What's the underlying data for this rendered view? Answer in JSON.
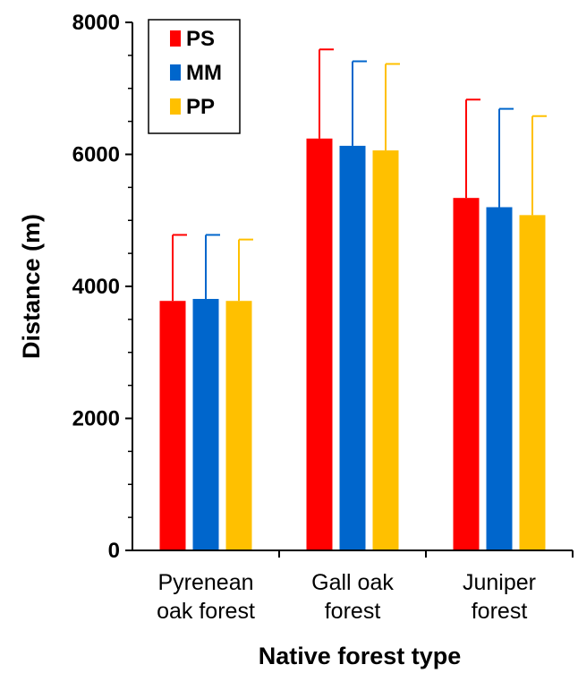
{
  "chart_data": {
    "type": "bar",
    "categories": [
      [
        "Pyrenean",
        "oak forest"
      ],
      [
        "Gall oak",
        "forest"
      ],
      [
        "Juniper",
        "forest"
      ]
    ],
    "series": [
      {
        "name": "PS",
        "color": "#ff0000",
        "values": [
          3780,
          6240,
          5340
        ],
        "errors": [
          1000,
          1350,
          1490
        ]
      },
      {
        "name": "MM",
        "color": "#0066cc",
        "values": [
          3810,
          6130,
          5200
        ],
        "errors": [
          970,
          1280,
          1490
        ]
      },
      {
        "name": "PP",
        "color": "#ffc000",
        "values": [
          3780,
          6060,
          5080
        ],
        "errors": [
          930,
          1310,
          1500
        ]
      }
    ],
    "xlabel": "Native forest type",
    "ylabel": "Distance (m)",
    "ylim": [
      0,
      8000
    ],
    "yticks": [
      "0",
      "2000",
      "4000",
      "6000",
      "8000"
    ],
    "ytick_values": [
      0,
      2000,
      4000,
      6000,
      8000
    ],
    "legend_position": "top-left",
    "grid": false
  }
}
